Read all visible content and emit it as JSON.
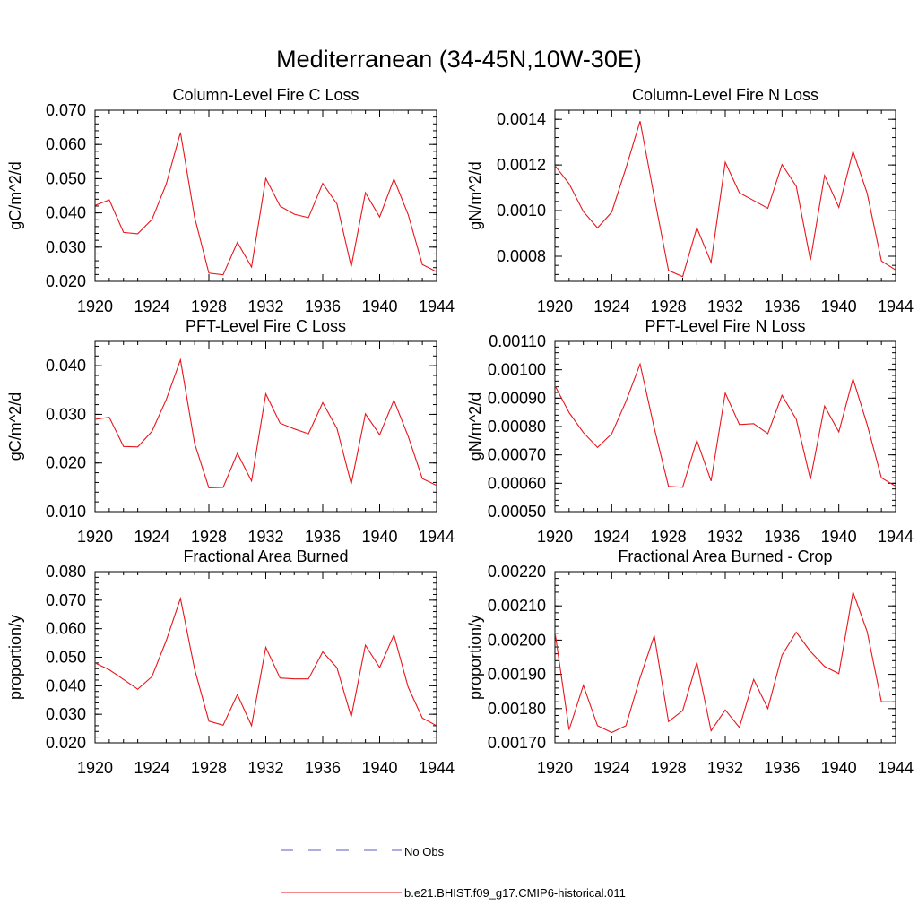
{
  "figure": {
    "title": "Mediterranean (34-45N,10W-30E)"
  },
  "legend": {
    "placement": "bottom-center",
    "entries": [
      {
        "label": "No Obs",
        "color": "#5b5bbf",
        "style": "dashed"
      },
      {
        "label": "b.e21.BHIST.f09_g17.CMIP6-historical.011",
        "color": "#e8161c",
        "style": "solid"
      }
    ]
  },
  "chart_data": [
    {
      "type": "line",
      "title": "Column-Level Fire C Loss",
      "ylabel": "gC/m^2/d",
      "xlim": [
        1920,
        1944
      ],
      "ylim": [
        0.02,
        0.07
      ],
      "x_ticks": [
        "1920",
        "1924",
        "1928",
        "1932",
        "1936",
        "1940",
        "1944"
      ],
      "y_ticks": [
        "0.020",
        "0.030",
        "0.040",
        "0.050",
        "0.060",
        "0.070"
      ],
      "series": [
        {
          "color": "#e8161c",
          "x": [
            1920,
            1921,
            1922,
            1923,
            1924,
            1925,
            1926,
            1927,
            1928,
            1929,
            1930,
            1931,
            1932,
            1933,
            1934,
            1935,
            1936,
            1937,
            1938,
            1939,
            1940,
            1941,
            1942,
            1943,
            1944
          ],
          "values": [
            0.0422,
            0.0438,
            0.0343,
            0.0339,
            0.0381,
            0.0484,
            0.0635,
            0.0387,
            0.0224,
            0.0219,
            0.0314,
            0.0242,
            0.0501,
            0.042,
            0.0396,
            0.0386,
            0.0486,
            0.0426,
            0.0243,
            0.0459,
            0.0388,
            0.0499,
            0.0395,
            0.0249,
            0.0228
          ]
        }
      ]
    },
    {
      "type": "line",
      "title": "Column-Level Fire N Loss",
      "ylabel": "gN/m^2/d",
      "xlim": [
        1920,
        1944
      ],
      "ylim": [
        0.00069,
        0.00144
      ],
      "x_ticks": [
        "1920",
        "1924",
        "1928",
        "1932",
        "1936",
        "1940",
        "1944"
      ],
      "y_ticks": [
        "0.0008",
        "0.0010",
        "0.0012",
        "0.0014"
      ],
      "series": [
        {
          "color": "#e8161c",
          "x": [
            1920,
            1921,
            1922,
            1923,
            1924,
            1925,
            1926,
            1927,
            1928,
            1929,
            1930,
            1931,
            1932,
            1933,
            1934,
            1935,
            1936,
            1937,
            1938,
            1939,
            1940,
            1941,
            1942,
            1943,
            1944
          ],
          "values": [
            0.001197,
            0.001118,
            0.000996,
            0.000924,
            0.000993,
            0.001186,
            0.001392,
            0.00106,
            0.000738,
            0.000711,
            0.000925,
            0.000773,
            0.001212,
            0.001078,
            0.001044,
            0.00101,
            0.001202,
            0.001107,
            0.000783,
            0.001154,
            0.001014,
            0.001259,
            0.001076,
            0.000779,
            0.00074
          ]
        }
      ]
    },
    {
      "type": "line",
      "title": "PFT-Level Fire C Loss",
      "ylabel": "gC/m^2/d",
      "xlim": [
        1920,
        1944
      ],
      "ylim": [
        0.01,
        0.045
      ],
      "x_ticks": [
        "1920",
        "1924",
        "1928",
        "1932",
        "1936",
        "1940",
        "1944"
      ],
      "y_ticks": [
        "0.010",
        "0.020",
        "0.030",
        "0.040"
      ],
      "series": [
        {
          "color": "#e8161c",
          "x": [
            1920,
            1921,
            1922,
            1923,
            1924,
            1925,
            1926,
            1927,
            1928,
            1929,
            1930,
            1931,
            1932,
            1933,
            1934,
            1935,
            1936,
            1937,
            1938,
            1939,
            1940,
            1941,
            1942,
            1943,
            1944
          ],
          "values": [
            0.029,
            0.0294,
            0.0234,
            0.0233,
            0.0265,
            0.033,
            0.0412,
            0.024,
            0.0149,
            0.015,
            0.022,
            0.0163,
            0.0342,
            0.0282,
            0.027,
            0.026,
            0.0324,
            0.0271,
            0.0157,
            0.0301,
            0.0258,
            0.0329,
            0.0255,
            0.0168,
            0.0154
          ]
        }
      ]
    },
    {
      "type": "line",
      "title": "PFT-Level Fire N Loss",
      "ylabel": "gN/m^2/d",
      "xlim": [
        1920,
        1944
      ],
      "ylim": [
        0.0005,
        0.0011
      ],
      "x_ticks": [
        "1920",
        "1924",
        "1928",
        "1932",
        "1936",
        "1940",
        "1944"
      ],
      "y_ticks": [
        "0.00050",
        "0.00060",
        "0.00070",
        "0.00080",
        "0.00090",
        "0.00100",
        "0.00110"
      ],
      "series": [
        {
          "color": "#e8161c",
          "x": [
            1920,
            1921,
            1922,
            1923,
            1924,
            1925,
            1926,
            1927,
            1928,
            1929,
            1930,
            1931,
            1932,
            1933,
            1934,
            1935,
            1936,
            1937,
            1938,
            1939,
            1940,
            1941,
            1942,
            1943,
            1944
          ],
          "values": [
            0.000944,
            0.000849,
            0.000779,
            0.000726,
            0.000774,
            0.000888,
            0.00102,
            0.000795,
            0.000589,
            0.000586,
            0.000751,
            0.000608,
            0.000918,
            0.000807,
            0.00081,
            0.000775,
            0.00091,
            0.000826,
            0.000614,
            0.000872,
            0.000781,
            0.000968,
            0.000807,
            0.000619,
            0.00059
          ]
        }
      ]
    },
    {
      "type": "line",
      "title": "Fractional Area Burned",
      "ylabel": "proportion/y",
      "xlim": [
        1920,
        1944
      ],
      "ylim": [
        0.02,
        0.08
      ],
      "x_ticks": [
        "1920",
        "1924",
        "1928",
        "1932",
        "1936",
        "1940",
        "1944"
      ],
      "y_ticks": [
        "0.020",
        "0.030",
        "0.040",
        "0.050",
        "0.060",
        "0.070",
        "0.080"
      ],
      "series": [
        {
          "color": "#e8161c",
          "x": [
            1920,
            1921,
            1922,
            1923,
            1924,
            1925,
            1926,
            1927,
            1928,
            1929,
            1930,
            1931,
            1932,
            1933,
            1934,
            1935,
            1936,
            1937,
            1938,
            1939,
            1940,
            1941,
            1942,
            1943,
            1944
          ],
          "values": [
            0.048,
            0.0456,
            0.0422,
            0.0388,
            0.0432,
            0.0558,
            0.0706,
            0.0458,
            0.0276,
            0.0262,
            0.0369,
            0.026,
            0.0535,
            0.0427,
            0.0424,
            0.0424,
            0.0519,
            0.0463,
            0.0291,
            0.0542,
            0.0464,
            0.0578,
            0.0395,
            0.0287,
            0.026
          ]
        }
      ]
    },
    {
      "type": "line",
      "title": "Fractional Area Burned - Crop",
      "ylabel": "proportion/y",
      "xlim": [
        1920,
        1944
      ],
      "ylim": [
        0.0017,
        0.0022
      ],
      "x_ticks": [
        "1920",
        "1924",
        "1928",
        "1932",
        "1936",
        "1940",
        "1944"
      ],
      "y_ticks": [
        "0.00170",
        "0.00180",
        "0.00190",
        "0.00200",
        "0.00210",
        "0.00220"
      ],
      "series": [
        {
          "color": "#e8161c",
          "x": [
            1920,
            1921,
            1922,
            1923,
            1924,
            1925,
            1926,
            1927,
            1928,
            1929,
            1930,
            1931,
            1932,
            1933,
            1934,
            1935,
            1936,
            1937,
            1938,
            1939,
            1940,
            1941,
            1942,
            1943,
            1944
          ],
          "values": [
            0.002024,
            0.001738,
            0.001868,
            0.00175,
            0.00173,
            0.00175,
            0.00189,
            0.002013,
            0.001762,
            0.001794,
            0.001935,
            0.001735,
            0.001796,
            0.001745,
            0.001885,
            0.0018,
            0.001956,
            0.002023,
            0.001967,
            0.001923,
            0.001902,
            0.00214,
            0.002025,
            0.00182,
            0.00182
          ]
        }
      ]
    }
  ]
}
